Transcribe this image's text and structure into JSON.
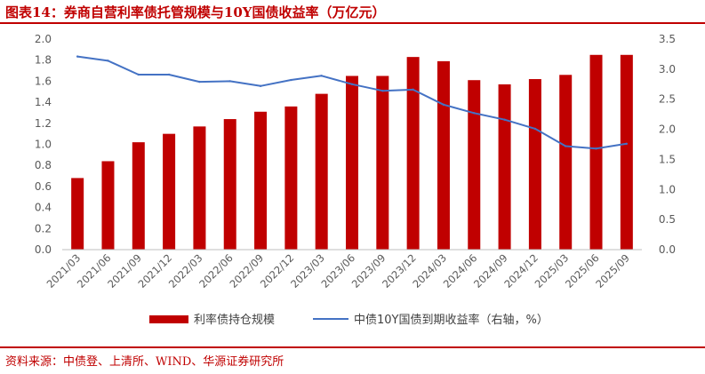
{
  "header": {
    "title": "图表14：券商自营利率债托管规模与10Y国债收益率（万亿元）"
  },
  "footer": {
    "source": "资料来源：中债登、上清所、WIND、华源证券研究所"
  },
  "colors": {
    "brand": "#c00000",
    "bar": "#c00000",
    "line": "#4472c4",
    "axis_text": "#595959"
  },
  "chart_data": {
    "type": "bar",
    "categories": [
      "2021/03",
      "2021/06",
      "2021/09",
      "2021/12",
      "2022/03",
      "2022/06",
      "2022/09",
      "2022/12",
      "2023/03",
      "2023/06",
      "2023/09",
      "2023/12",
      "2024/03",
      "2024/06",
      "2024/09",
      "2024/12",
      "2025/03",
      "2025/06",
      "2025/09"
    ],
    "series": [
      {
        "name": "利率债持仓规模",
        "type": "bar",
        "axis": "left",
        "values": [
          0.68,
          0.84,
          1.02,
          1.1,
          1.17,
          1.24,
          1.31,
          1.36,
          1.48,
          1.65,
          1.65,
          1.83,
          1.79,
          1.61,
          1.57,
          1.62,
          1.66,
          1.85,
          1.85
        ]
      },
      {
        "name": "中债10Y国债到期收益率（右轴，%）",
        "type": "line",
        "axis": "right",
        "values": [
          3.21,
          3.14,
          2.91,
          2.91,
          2.79,
          2.8,
          2.72,
          2.82,
          2.89,
          2.75,
          2.64,
          2.66,
          2.41,
          2.27,
          2.16,
          2.01,
          1.72,
          1.68,
          1.76
        ]
      }
    ],
    "y_left": {
      "min": 0.0,
      "max": 2.0,
      "step": 0.2,
      "ticks": [
        "0.0",
        "0.2",
        "0.4",
        "0.6",
        "0.8",
        "1.0",
        "1.2",
        "1.4",
        "1.6",
        "1.8",
        "2.0"
      ]
    },
    "y_right": {
      "min": 0.0,
      "max": 3.5,
      "step": 0.5,
      "ticks": [
        "0.0",
        "0.5",
        "1.0",
        "1.5",
        "2.0",
        "2.5",
        "3.0",
        "3.5"
      ]
    },
    "grid": false,
    "legend_position": "bottom"
  }
}
